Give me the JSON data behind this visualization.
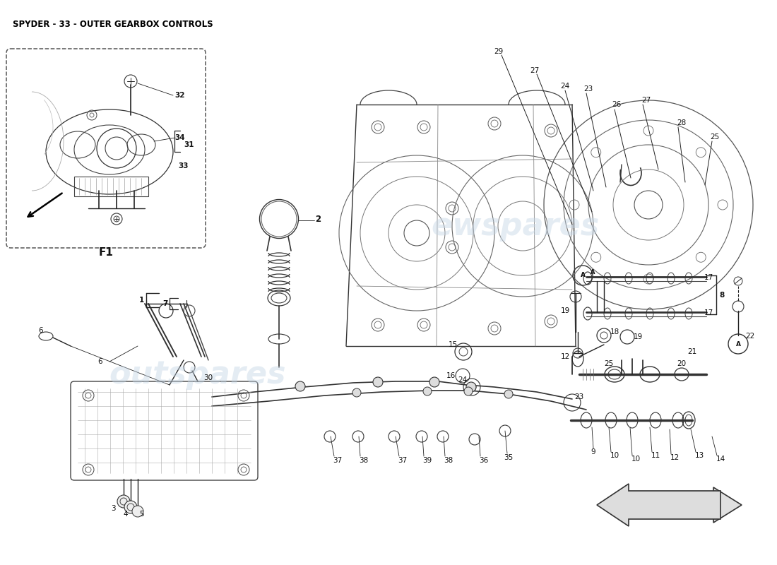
{
  "title": "SPYDER - 33 - OUTER GEARBOX CONTROLS",
  "background_color": "#ffffff",
  "fig_width": 11.0,
  "fig_height": 8.0,
  "dpi": 100,
  "watermark1": "outspares",
  "watermark2": "ewspares",
  "label_fs": 7.5,
  "title_fs": 8.5
}
